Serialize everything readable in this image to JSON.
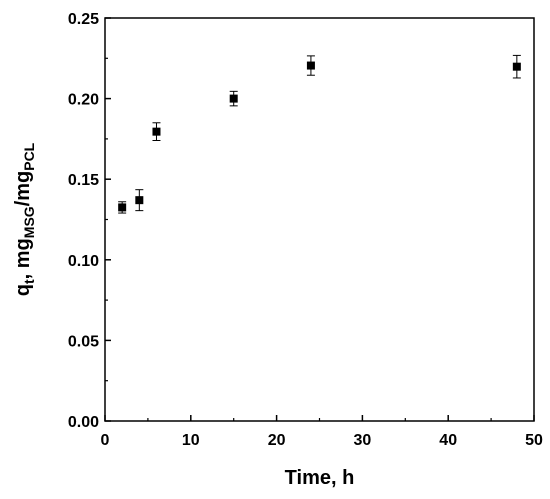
{
  "chart_data": {
    "type": "scatter",
    "xlabel": "Time, h",
    "ylabel": {
      "main": "q",
      "main_sub": "t",
      "mid": ", mg",
      "mid_sub": "MSG",
      "slash": "/mg",
      "end_sub": "PCL"
    },
    "xlim": [
      0,
      50
    ],
    "ylim": [
      0,
      0.25
    ],
    "xticks": [
      0,
      10,
      20,
      30,
      40,
      50
    ],
    "xtick_labels": [
      "0",
      "10",
      "20",
      "30",
      "40",
      "50"
    ],
    "yticks": [
      0,
      0.05,
      0.1,
      0.15,
      0.2,
      0.25
    ],
    "ytick_labels": [
      "0.00",
      "0.05",
      "0.10",
      "0.15",
      "0.20",
      "0.25"
    ],
    "grid": false,
    "marker": "square",
    "marker_color": "#000000",
    "points": [
      {
        "x": 2,
        "y": 0.1325,
        "err": 0.0035
      },
      {
        "x": 4,
        "y": 0.137,
        "err": 0.0065
      },
      {
        "x": 6,
        "y": 0.1795,
        "err": 0.0055
      },
      {
        "x": 15,
        "y": 0.2,
        "err": 0.0045
      },
      {
        "x": 24,
        "y": 0.2205,
        "err": 0.006
      },
      {
        "x": 48,
        "y": 0.2198,
        "err": 0.007
      }
    ]
  }
}
